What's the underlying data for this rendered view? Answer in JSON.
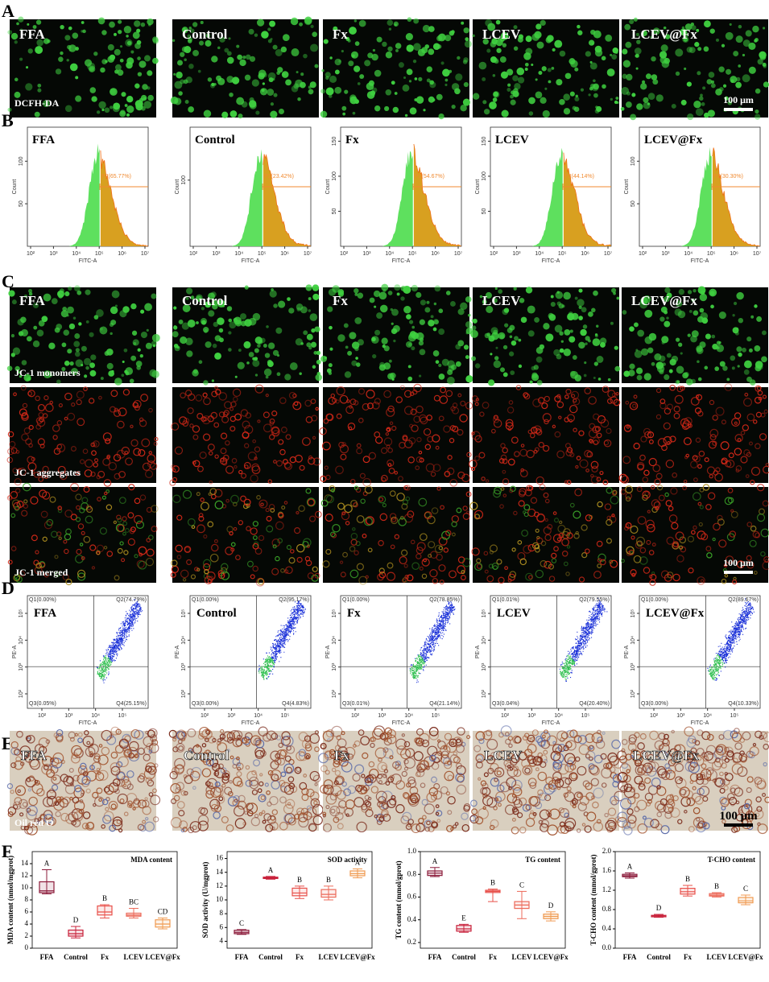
{
  "panel_labels": [
    "A",
    "B",
    "C",
    "D",
    "E",
    "F"
  ],
  "groups": [
    "FFA",
    "Control",
    "Fx",
    "LCEV",
    "LCEV@Fx"
  ],
  "a": {
    "label": "DCFH-DA",
    "scale": "100 μm"
  },
  "b": {
    "x_label": "FITC-A",
    "y_label": "Count",
    "x_ticks": [
      "10²",
      "10³",
      "10⁴",
      "10⁵",
      "10⁶",
      "10⁷"
    ],
    "ylims": [
      [
        0,
        140
      ],
      [
        0,
        180
      ],
      [
        0,
        170
      ],
      [
        0,
        170
      ],
      [
        0,
        140
      ]
    ],
    "y_ticks": [
      [
        50,
        100
      ],
      [
        100
      ],
      [
        50,
        100,
        150
      ],
      [
        50,
        100,
        150
      ],
      [
        50,
        100
      ]
    ],
    "gates": [
      "P2(65.77%)",
      "P2(23.42%)",
      "P2(54.67%)",
      "P2(44.14%)",
      "P2(30.30%)"
    ]
  },
  "c": {
    "rows": [
      "JC-1 monomers",
      "JC-1 aggregates",
      "JC-1 merged"
    ],
    "scale": "100 μm"
  },
  "d": {
    "x_label": "FITC-A",
    "y_label": "PE-A",
    "x_ticks": [
      "10²",
      "10³",
      "10⁴",
      "10⁵"
    ],
    "y_ticks": [
      "10²",
      "10³",
      "10⁴",
      "10⁵"
    ],
    "quadrants": [
      [
        "Q1(0.00%)",
        "Q2(74.79%)",
        "Q3(0.05%)",
        "Q4(25.15%)"
      ],
      [
        "Q1(0.00%)",
        "Q2(95.17%)",
        "Q3(0.00%)",
        "Q4(4.83%)"
      ],
      [
        "Q1(0.00%)",
        "Q2(78.85%)",
        "Q3(0.01%)",
        "Q4(21.14%)"
      ],
      [
        "Q1(0.01%)",
        "Q2(79.55%)",
        "Q3(0.04%)",
        "Q4(20.40%)"
      ],
      [
        "Q1(0.00%)",
        "Q2(89.67%)",
        "Q3(0.00%)",
        "Q4(10.33%)"
      ]
    ]
  },
  "e": {
    "label": "Oil red O",
    "scale": "100 μm"
  },
  "chart_data": [
    {
      "type": "box",
      "title": "MDA content",
      "y_label": "MDA content (nmol/mgprot)",
      "categories": [
        "FFA",
        "Control",
        "Fx",
        "LCEV",
        "LCEV@Fx"
      ],
      "boxes": [
        [
          9,
          9.2,
          9.5,
          11,
          13
        ],
        [
          1.7,
          2,
          2.4,
          3,
          3.6
        ],
        [
          5,
          5.5,
          6,
          7,
          7.2
        ],
        [
          5,
          5.3,
          5.5,
          5.8,
          6.6
        ],
        [
          3.2,
          3.5,
          4,
          4.7,
          5
        ]
      ],
      "letters": [
        "A",
        "D",
        "B",
        "BC",
        "CD"
      ],
      "colors": [
        "#8b1a3a",
        "#c8203a",
        "#e8504a",
        "#ec6a5a",
        "#f09a50"
      ],
      "ylim": [
        0,
        16
      ],
      "yticks": [
        0,
        2,
        4,
        6,
        8,
        10,
        12,
        14
      ]
    },
    {
      "type": "box",
      "title": "SOD activity",
      "y_label": "SOD activity (U/mgprot)",
      "categories": [
        "FFA",
        "Control",
        "Fx",
        "LCEV",
        "LCEV@Fx"
      ],
      "boxes": [
        [
          5,
          5.1,
          5.3,
          5.6,
          5.7
        ],
        [
          13,
          13.1,
          13.2,
          13.3,
          13.4
        ],
        [
          10.2,
          10.6,
          11,
          11.7,
          12
        ],
        [
          10,
          10.4,
          10.8,
          11.5,
          12
        ],
        [
          13.2,
          13.5,
          13.8,
          14.2,
          14.5
        ]
      ],
      "letters": [
        "C",
        "A",
        "B",
        "B",
        "A"
      ],
      "colors": [
        "#8b1a3a",
        "#c8203a",
        "#e8504a",
        "#ec6a5a",
        "#f09a50"
      ],
      "ylim": [
        3,
        17
      ],
      "yticks": [
        4,
        6,
        8,
        10,
        12,
        14,
        16
      ]
    },
    {
      "type": "box",
      "title": "TG content",
      "y_label": "TG content (mmol/gprot)",
      "categories": [
        "FFA",
        "Control",
        "Fx",
        "LCEV",
        "LCEV@Fx"
      ],
      "boxes": [
        [
          0.78,
          0.79,
          0.81,
          0.83,
          0.86
        ],
        [
          0.29,
          0.3,
          0.32,
          0.35,
          0.36
        ],
        [
          0.56,
          0.64,
          0.65,
          0.66,
          0.67
        ],
        [
          0.41,
          0.5,
          0.53,
          0.56,
          0.65
        ],
        [
          0.39,
          0.41,
          0.43,
          0.45,
          0.47
        ]
      ],
      "letters": [
        "A",
        "E",
        "B",
        "C",
        "D"
      ],
      "colors": [
        "#8b1a3a",
        "#c8203a",
        "#e8504a",
        "#ec6a5a",
        "#f09a50"
      ],
      "ylim": [
        0.15,
        1
      ],
      "yticks": [
        0.2,
        0.4,
        0.6,
        0.8,
        {
          "value": 1,
          "label": "1.0"
        }
      ]
    },
    {
      "type": "box",
      "title": "T-CHO content",
      "y_label": "T-CHO content (mmol/gprot)",
      "categories": [
        "FFA",
        "Control",
        "Fx",
        "LCEV",
        "LCEV@Fx"
      ],
      "boxes": [
        [
          1.45,
          1.48,
          1.5,
          1.53,
          1.56
        ],
        [
          0.64,
          0.65,
          0.67,
          0.68,
          0.7
        ],
        [
          1.08,
          1.12,
          1.17,
          1.24,
          1.3
        ],
        [
          1.06,
          1.08,
          1.1,
          1.13,
          1.15
        ],
        [
          0.9,
          0.94,
          0.98,
          1.05,
          1.1
        ]
      ],
      "letters": [
        "A",
        "D",
        "B",
        "B",
        "C"
      ],
      "colors": [
        "#8b1a3a",
        "#c8203a",
        "#e8504a",
        "#ec6a5a",
        "#f09a50"
      ],
      "ylim": [
        0,
        2
      ],
      "yticks": [
        {
          "value": 0,
          "label": "0.0"
        },
        0.4,
        0.8,
        1.2,
        1.6,
        {
          "value": 2,
          "label": "2.0"
        }
      ]
    }
  ]
}
